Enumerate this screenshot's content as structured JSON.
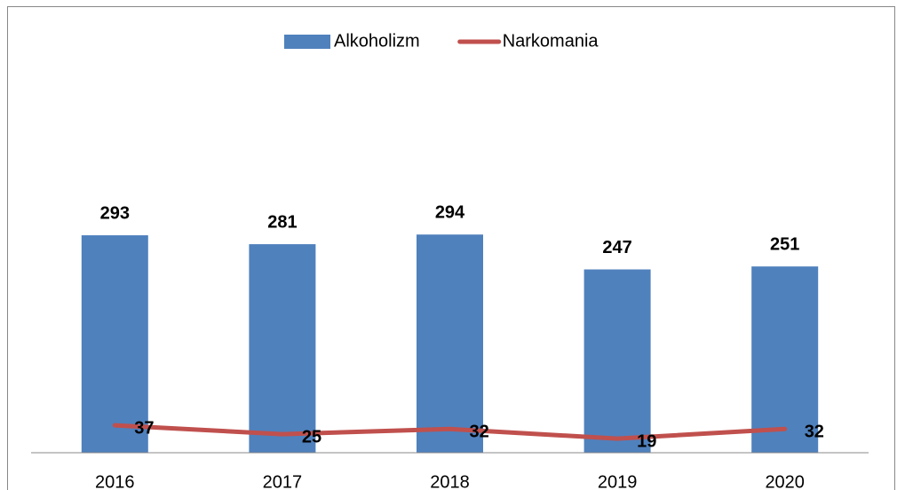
{
  "chart_data": {
    "type": "bar_line",
    "categories": [
      "2016",
      "2017",
      "2018",
      "2019",
      "2020"
    ],
    "series": [
      {
        "name": "Alkoholizm",
        "type": "bar",
        "color": "#4f81bd",
        "values": [
          293,
          281,
          294,
          247,
          251
        ]
      },
      {
        "name": "Narkomania",
        "type": "line",
        "color": "#c0504d",
        "values": [
          37,
          25,
          32,
          19,
          32
        ]
      }
    ],
    "ylim": [
      0,
      500
    ],
    "legend": "top"
  }
}
